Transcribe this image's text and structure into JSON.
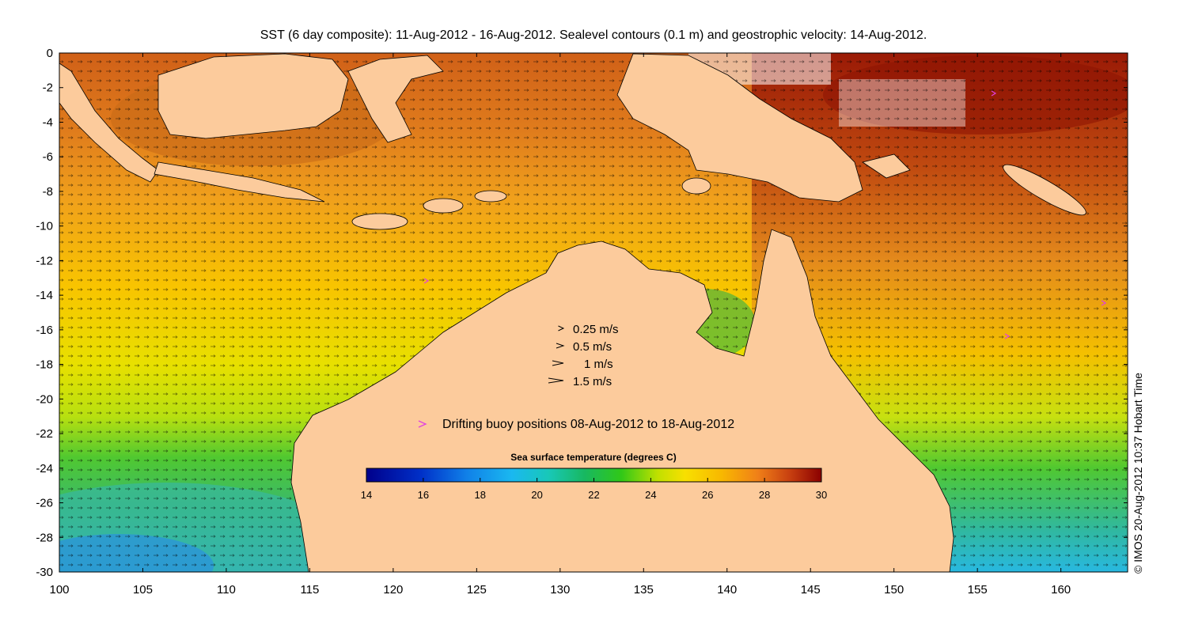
{
  "title": "SST (6 day composite): 11-Aug-2012 - 16-Aug-2012. Sealevel contours (0.1 m) and geostrophic velocity: 14-Aug-2012.",
  "credit": "© IMOS 20-Aug-2012 10:37 Hobart Time",
  "chart_data": {
    "type": "heatmap",
    "xlim": [
      100,
      164
    ],
    "ylim": [
      -30,
      0
    ],
    "x_ticks": [
      "100",
      "105",
      "110",
      "115",
      "120",
      "125",
      "130",
      "135",
      "140",
      "145",
      "150",
      "155",
      "160"
    ],
    "y_ticks": [
      "0",
      "-2",
      "-4",
      "-6",
      "-8",
      "-10",
      "-12",
      "-14",
      "-16",
      "-18",
      "-20",
      "-22",
      "-24",
      "-26",
      "-28",
      "-30"
    ],
    "colorbar": {
      "title": "Sea surface temperature (degrees C)",
      "ticks": [
        "14",
        "16",
        "18",
        "20",
        "22",
        "24",
        "26",
        "28",
        "30"
      ],
      "range": [
        14,
        30
      ]
    },
    "velocity_legend": [
      {
        "speed": 0.25,
        "label": "0.25 m/s"
      },
      {
        "speed": 0.5,
        "label": "0.5 m/s"
      },
      {
        "speed": 1,
        "label": "1 m/s"
      },
      {
        "speed": 1.5,
        "label": "1.5 m/s"
      }
    ],
    "buoy_legend": "Drifting buoy positions 08-Aug-2012 to 18-Aug-2012",
    "colors": {
      "land": "#fccb9c",
      "buoy": "#e040e0",
      "colormap": [
        "#00008b",
        "#0050e0",
        "#1aaaf0",
        "#18c8b0",
        "#18b848",
        "#40d010",
        "#d8e800",
        "#f8c800",
        "#f09018",
        "#d06018",
        "#b02808",
        "#8b0000"
      ]
    }
  }
}
